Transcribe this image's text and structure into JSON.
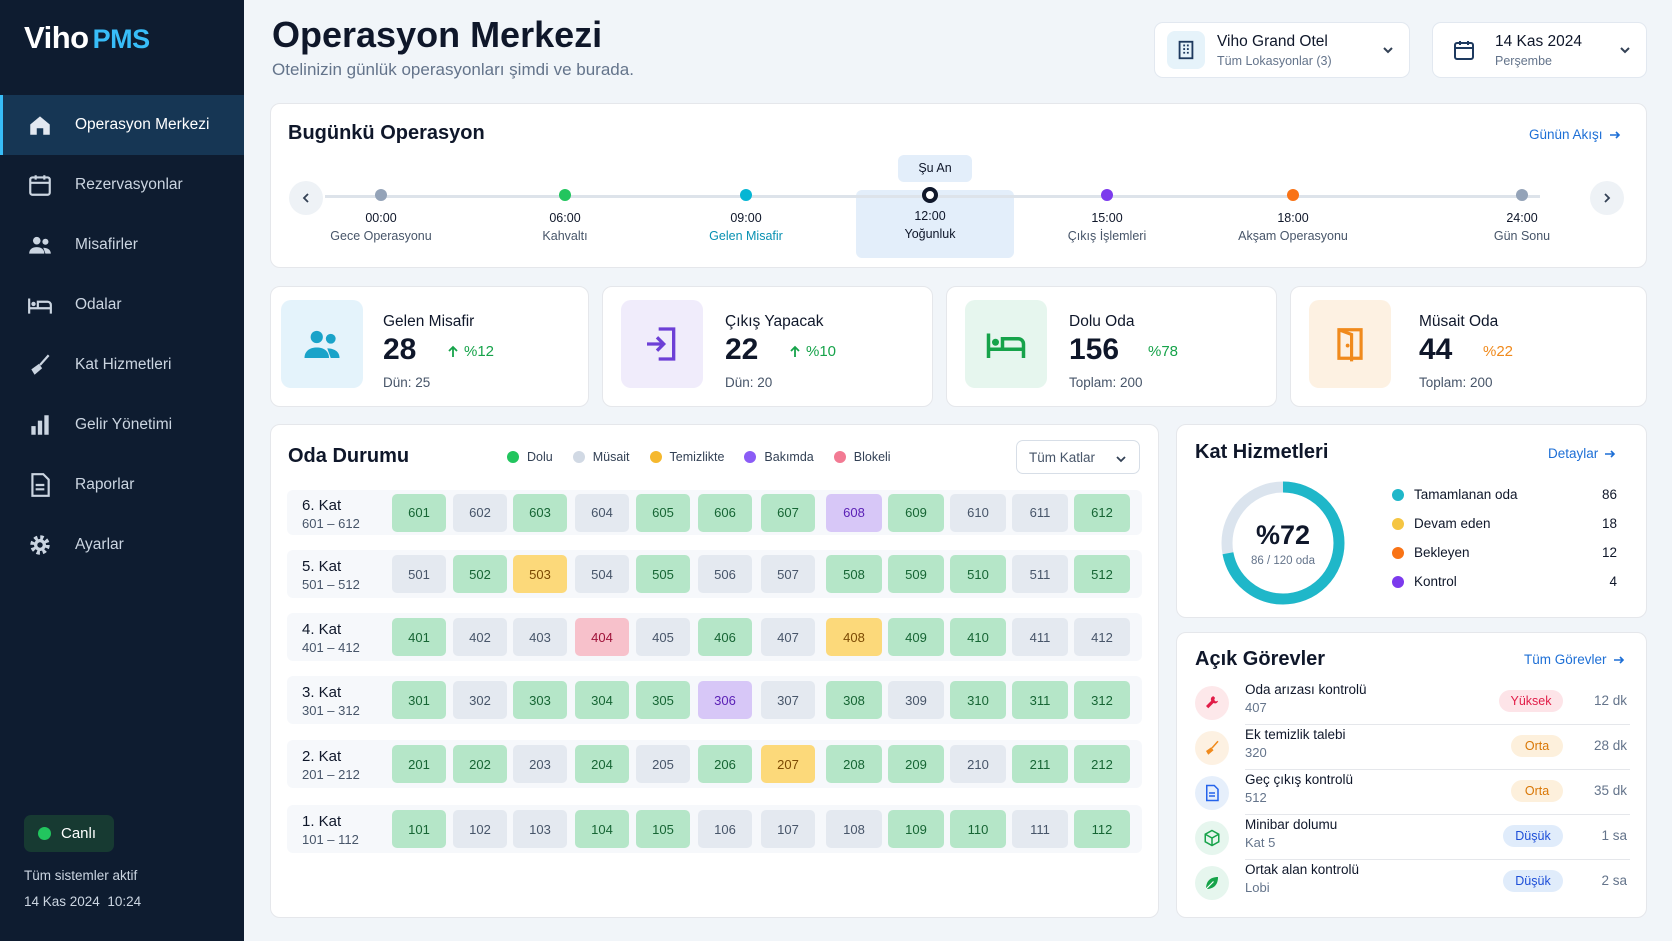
{
  "app": {
    "brand": "Viho",
    "brand_suffix": "PMS"
  },
  "nav": [
    {
      "label": "Operasyon Merkezi",
      "icon": "home-icon"
    },
    {
      "label": "Rezervasyonlar",
      "icon": "calendar-icon"
    },
    {
      "label": "Misafirler",
      "icon": "users-icon"
    },
    {
      "label": "Odalar",
      "icon": "bed-icon"
    },
    {
      "label": "Kat Hizmetleri",
      "icon": "broom-icon"
    },
    {
      "label": "Gelir Yönetimi",
      "icon": "bar-chart-icon"
    },
    {
      "label": "Raporlar",
      "icon": "document-icon"
    },
    {
      "label": "Ayarlar",
      "icon": "gear-icon"
    }
  ],
  "status": {
    "live_label": "Canlı",
    "systems": "Tüm sistemler aktif",
    "date": "14 Kas 2024",
    "time": "10:24"
  },
  "header": {
    "title": "Operasyon Merkezi",
    "subtitle": "Otelinizin günlük operasyonları şimdi ve burada."
  },
  "hotel_select": {
    "name": "Viho Grand Otel",
    "sub": "Tüm Lokasyonlar (3)"
  },
  "date_select": {
    "date": "14 Kas 2024",
    "day": "Perşembe"
  },
  "today": {
    "title": "Bugünkü Operasyon",
    "link": "Günün Akışı",
    "now_label": "Şu An",
    "points": [
      {
        "time": "00:00",
        "label": "Gece Operasyonu",
        "color": "#94a3b8"
      },
      {
        "time": "06:00",
        "label": "Kahvaltı",
        "color": "#22c55e"
      },
      {
        "time": "09:00",
        "label": "Gelen Misafir",
        "color": "#06b6d4"
      },
      {
        "time": "12:00",
        "label": "Yoğunluk",
        "color": "#0f172a"
      },
      {
        "time": "15:00",
        "label": "Çıkış İşlemleri",
        "color": "#7c3aed"
      },
      {
        "time": "18:00",
        "label": "Akşam Operasyonu",
        "color": "#f97316"
      },
      {
        "time": "24:00",
        "label": "Gün Sonu",
        "color": "#94a3b8"
      }
    ]
  },
  "kpis": [
    {
      "label": "Gelen Misafir",
      "value": "28",
      "change": "%12",
      "sub": "Dün: 25",
      "icon": "users-icon"
    },
    {
      "label": "Çıkış Yapacak",
      "value": "22",
      "change": "%10",
      "sub": "Dün: 20",
      "icon": "logout-icon"
    },
    {
      "label": "Dolu Oda",
      "value": "156",
      "change": "%78",
      "sub": "Toplam: 200",
      "icon": "bed-icon"
    },
    {
      "label": "Müsait Oda",
      "value": "44",
      "change": "%22",
      "sub": "Toplam: 200",
      "icon": "door-icon"
    }
  ],
  "rooms": {
    "title": "Oda Durumu",
    "filter": "Tüm Katlar",
    "legend": [
      {
        "label": "Dolu",
        "color": "#22c55e"
      },
      {
        "label": "Müsait",
        "color": "#d1d9e4"
      },
      {
        "label": "Temizlikte",
        "color": "#f5b82e"
      },
      {
        "label": "Bakımda",
        "color": "#8b5cf6"
      },
      {
        "label": "Blokeli",
        "color": "#f27a93"
      }
    ],
    "floors": [
      {
        "name": "6. Kat",
        "range": "601 – 612",
        "rooms": [
          [
            "601",
            "dolu"
          ],
          [
            "602",
            "musait"
          ],
          [
            "603",
            "dolu"
          ],
          [
            "604",
            "musait"
          ],
          [
            "605",
            "dolu"
          ],
          [
            "606",
            "dolu"
          ],
          [
            "607",
            "dolu"
          ],
          [
            "608",
            "bakimda"
          ],
          [
            "609",
            "dolu"
          ],
          [
            "610",
            "musait"
          ],
          [
            "611",
            "musait"
          ],
          [
            "612",
            "dolu"
          ]
        ]
      },
      {
        "name": "5. Kat",
        "range": "501 – 512",
        "rooms": [
          [
            "501",
            "musait"
          ],
          [
            "502",
            "dolu"
          ],
          [
            "503",
            "temizlikte"
          ],
          [
            "504",
            "musait"
          ],
          [
            "505",
            "dolu"
          ],
          [
            "506",
            "musait"
          ],
          [
            "507",
            "musait"
          ],
          [
            "508",
            "dolu"
          ],
          [
            "509",
            "dolu"
          ],
          [
            "510",
            "dolu"
          ],
          [
            "511",
            "musait"
          ],
          [
            "512",
            "dolu"
          ]
        ]
      },
      {
        "name": "4. Kat",
        "range": "401 – 412",
        "rooms": [
          [
            "401",
            "dolu"
          ],
          [
            "402",
            "musait"
          ],
          [
            "403",
            "musait"
          ],
          [
            "404",
            "blokeli"
          ],
          [
            "405",
            "musait"
          ],
          [
            "406",
            "dolu"
          ],
          [
            "407",
            "musait"
          ],
          [
            "408",
            "temizlikte"
          ],
          [
            "409",
            "dolu"
          ],
          [
            "410",
            "dolu"
          ],
          [
            "411",
            "musait"
          ],
          [
            "412",
            "musait"
          ]
        ]
      },
      {
        "name": "3. Kat",
        "range": "301 – 312",
        "rooms": [
          [
            "301",
            "dolu"
          ],
          [
            "302",
            "musait"
          ],
          [
            "303",
            "dolu"
          ],
          [
            "304",
            "dolu"
          ],
          [
            "305",
            "dolu"
          ],
          [
            "306",
            "bakimda"
          ],
          [
            "307",
            "musait"
          ],
          [
            "308",
            "dolu"
          ],
          [
            "309",
            "musait"
          ],
          [
            "310",
            "dolu"
          ],
          [
            "311",
            "dolu"
          ],
          [
            "312",
            "dolu"
          ]
        ]
      },
      {
        "name": "2. Kat",
        "range": "201 – 212",
        "rooms": [
          [
            "201",
            "dolu"
          ],
          [
            "202",
            "dolu"
          ],
          [
            "203",
            "musait"
          ],
          [
            "204",
            "dolu"
          ],
          [
            "205",
            "musait"
          ],
          [
            "206",
            "dolu"
          ],
          [
            "207",
            "temizlikte"
          ],
          [
            "208",
            "dolu"
          ],
          [
            "209",
            "dolu"
          ],
          [
            "210",
            "musait"
          ],
          [
            "211",
            "dolu"
          ],
          [
            "212",
            "dolu"
          ]
        ]
      },
      {
        "name": "1. Kat",
        "range": "101 – 112",
        "rooms": [
          [
            "101",
            "dolu"
          ],
          [
            "102",
            "musait"
          ],
          [
            "103",
            "musait"
          ],
          [
            "104",
            "dolu"
          ],
          [
            "105",
            "dolu"
          ],
          [
            "106",
            "musait"
          ],
          [
            "107",
            "musait"
          ],
          [
            "108",
            "musait"
          ],
          [
            "109",
            "dolu"
          ],
          [
            "110",
            "dolu"
          ],
          [
            "111",
            "musait"
          ],
          [
            "112",
            "dolu"
          ]
        ]
      }
    ]
  },
  "housekeeping": {
    "title": "Kat Hizmetleri",
    "link": "Detaylar",
    "percent_label": "%72",
    "percent": 0.72,
    "caption": "86 / 120 oda",
    "items": [
      {
        "label": "Tamamlanan oda",
        "value": "86",
        "color": "#1fb7c9"
      },
      {
        "label": "Devam eden",
        "value": "18",
        "color": "#f5c542"
      },
      {
        "label": "Bekleyen",
        "value": "12",
        "color": "#f97316"
      },
      {
        "label": "Kontrol",
        "value": "4",
        "color": "#7c3aed"
      }
    ]
  },
  "tasks": {
    "title": "Açık Görevler",
    "link": "Tüm Görevler",
    "items": [
      {
        "name": "Oda arızası kontrolü",
        "sub": "407",
        "priority": "Yüksek",
        "time": "12 dk",
        "icon": "wrench-icon"
      },
      {
        "name": "Ek temizlik talebi",
        "sub": "320",
        "priority": "Orta",
        "time": "28 dk",
        "icon": "broom-icon"
      },
      {
        "name": "Geç çıkış kontrolü",
        "sub": "512",
        "priority": "Orta",
        "time": "35 dk",
        "icon": "document-icon"
      },
      {
        "name": "Minibar dolumu",
        "sub": "Kat 5",
        "priority": "Düşük",
        "time": "1 sa",
        "icon": "box-icon"
      },
      {
        "name": "Ortak alan kontrolü",
        "sub": "Lobi",
        "priority": "Düşük",
        "time": "2 sa",
        "icon": "leaf-icon"
      }
    ]
  },
  "colors": {
    "accent": "#1d6fd6",
    "sidebar": "#0e1c30",
    "positive": "#16a34a",
    "warning": "#f59e0b"
  }
}
